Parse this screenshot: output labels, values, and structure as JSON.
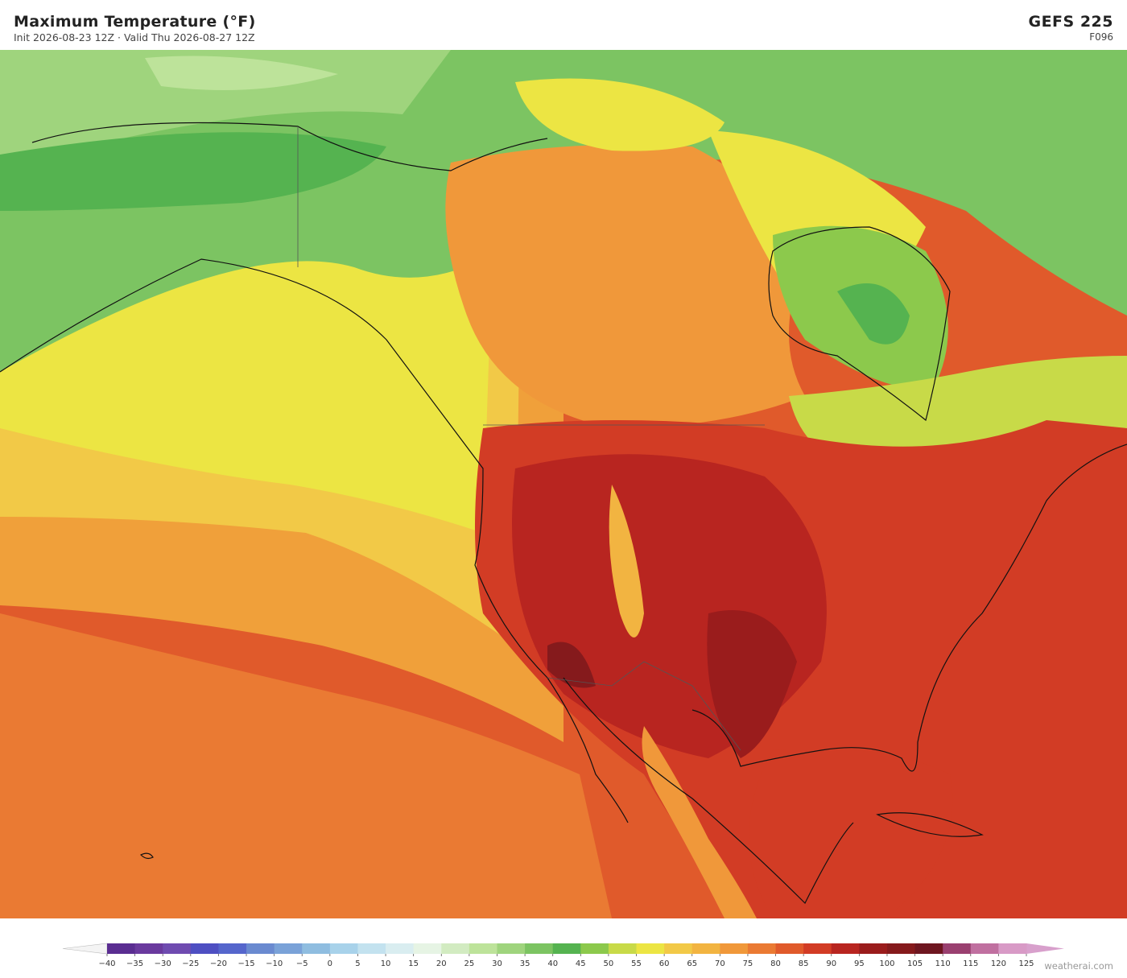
{
  "header": {
    "title": "Maximum Temperature  (°F)",
    "subtitle": "Init 2026-08-23 12Z  ·  Valid Thu 2026-08-27 12Z",
    "model": "GEFS  225",
    "forecast_hour": "F096"
  },
  "colorbar": {
    "ticks": [
      {
        "value": -40,
        "label": "−40"
      },
      {
        "value": -35,
        "label": "−35"
      },
      {
        "value": -30,
        "label": "−30"
      },
      {
        "value": -25,
        "label": "−25"
      },
      {
        "value": -20,
        "label": "−20"
      },
      {
        "value": -15,
        "label": "−15"
      },
      {
        "value": -10,
        "label": "−10"
      },
      {
        "value": -5,
        "label": "−5"
      },
      0,
      5,
      10,
      15,
      20,
      25,
      30,
      35,
      40,
      45,
      50,
      55,
      60,
      65,
      70,
      75,
      80,
      85,
      90,
      95,
      100,
      105,
      110,
      115,
      120,
      125
    ],
    "colors": [
      "#5a2d91",
      "#6a3a9e",
      "#6f4bb0",
      "#4e4fc2",
      "#5566cc",
      "#6a8ad0",
      "#7aa2d8",
      "#8fbde0",
      "#a8d2ea",
      "#c3e2ef",
      "#d9edf0",
      "#e6f4e4",
      "#d2ebc1",
      "#bde39a",
      "#9fd47d",
      "#7cc462",
      "#55b350",
      "#8cc94c",
      "#c8da48",
      "#ece543",
      "#f2c947",
      "#f2b441",
      "#f0983a",
      "#ea7a33",
      "#e05a2b",
      "#d23c25",
      "#b82520",
      "#9a1c1c",
      "#851a1c",
      "#6e1620",
      "#9a4070",
      "#c070a0",
      "#d89ac6"
    ],
    "under_color": "#f4f4f4",
    "over_color": "#d8a0cc"
  },
  "watermark": "weatherai.com"
}
